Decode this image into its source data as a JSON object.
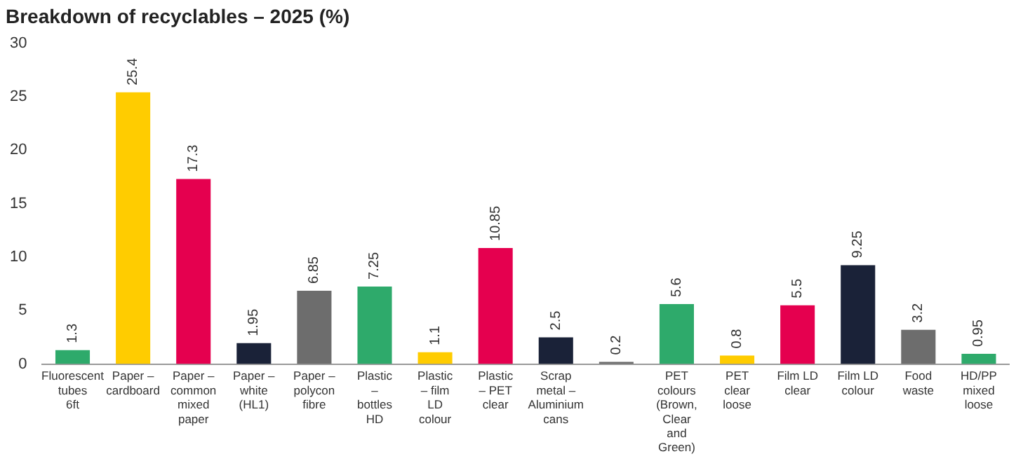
{
  "chart_data": {
    "type": "bar",
    "title": "Breakdown of recyclables – 2025 (%)",
    "categories": [
      "Fluorescent tubes 6ft",
      "Paper – cardboard",
      "Paper – common mixed paper",
      "Paper – white (HL1)",
      "Paper – polycon fibre",
      "Plastic – bottles HD",
      "Plastic – film LD colour",
      "Plastic – PET clear",
      "Scrap metal – Aluminium cans",
      null,
      "PET colours (Brown, Clear and Green)",
      "PET clear loose",
      "Film LD clear",
      "Film LD colour",
      "Food waste",
      "HD/PP mixed loose"
    ],
    "values": [
      1.3,
      25.4,
      17.3,
      1.95,
      6.85,
      7.25,
      1.1,
      10.85,
      2.5,
      0.2,
      5.6,
      0.8,
      5.5,
      9.25,
      3.2,
      0.95
    ],
    "colors": [
      "#2eaa6b",
      "#ffcc00",
      "#e5004f",
      "#1a2238",
      "#6d6d6d",
      "#2eaa6b",
      "#ffcc00",
      "#e5004f",
      "#1a2238",
      "#6d6d6d",
      "#2eaa6b",
      "#ffcc00",
      "#e5004f",
      "#1a2238",
      "#6d6d6d",
      "#2eaa6b"
    ],
    "ylim": [
      0,
      30
    ],
    "yticks": [
      0,
      5,
      10,
      15,
      20,
      25,
      30
    ],
    "grid": false,
    "data_labels": true
  }
}
